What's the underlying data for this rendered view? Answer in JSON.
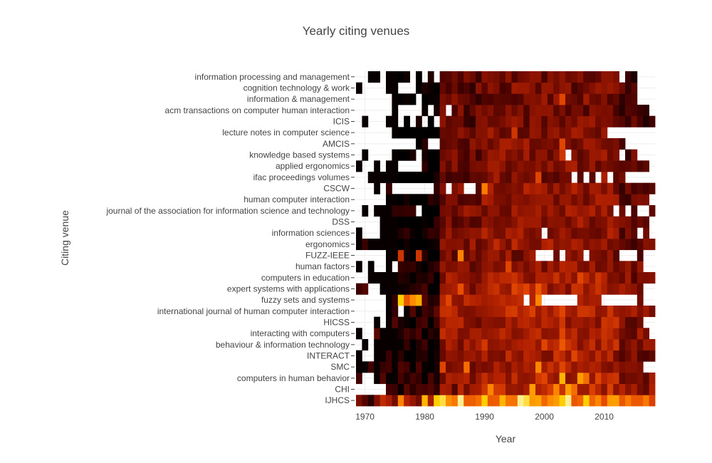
{
  "chart_data": {
    "type": "heatmap",
    "title": "Yearly citing venues",
    "xlabel": "Year",
    "ylabel": "Citing venue",
    "x_range": [
      1969,
      2018
    ],
    "x_ticks": [
      1970,
      1980,
      1990,
      2000,
      2010
    ],
    "grid": true,
    "colorscale": [
      "#000000",
      "#3c0000",
      "#7a0d00",
      "#b42200",
      "#e64a00",
      "#ff8a00",
      "#ffd200",
      "#fffbe0"
    ],
    "colorscale_note": "value 0-1, no colorbar shown; blank cells = no citations",
    "venues": [
      "IJHCS",
      "CHI",
      "computers in human behavior",
      "SMC",
      "INTERACT",
      "behaviour & information technology",
      "interacting with computers",
      "HICSS",
      "international journal of human computer interaction",
      "fuzzy sets and systems",
      "expert systems with applications",
      "computers in education",
      "human factors",
      "FUZZ-IEEE",
      "ergonomics",
      "information sciences",
      "DSS",
      "journal of the association for information science and technology",
      "human computer interaction",
      "CSCW",
      "ifac proceedings volumes",
      "applied ergonomics",
      "knowledge based systems",
      "AMCIS",
      "lecture notes in computer science",
      "ICIS",
      "acm transactions on computer human interaction",
      "information & management",
      "cognition technology & work",
      "information processing and management"
    ],
    "rows": {
      "IJHCS": {
        "start": 1969,
        "end": 2018,
        "base": 0.62,
        "blanks": [],
        "hot": [
          [
            1970,
            0.2
          ],
          [
            1971,
            0.1
          ],
          [
            1972,
            0.3
          ],
          [
            1976,
            0.7
          ],
          [
            1980,
            0.8
          ],
          [
            1982,
            0.85
          ],
          [
            1983,
            0.9
          ],
          [
            1986,
            0.95
          ],
          [
            1990,
            0.85
          ],
          [
            1993,
            0.8
          ],
          [
            1996,
            0.95
          ],
          [
            1997,
            0.9
          ],
          [
            2003,
            0.85
          ],
          [
            2004,
            0.95
          ],
          [
            2007,
            0.85
          ]
        ]
      },
      "CHI": {
        "start": 1969,
        "end": 2018,
        "base": 0.38,
        "blanks": [
          1969,
          1970,
          1971,
          1972,
          1973
        ],
        "hot": [
          [
            1985,
            0.2
          ],
          [
            1991,
            0.7
          ],
          [
            1998,
            0.75
          ],
          [
            2002,
            0.7
          ],
          [
            2004,
            0.75
          ],
          [
            2005,
            0.65
          ]
        ]
      },
      "computers in human behavior": {
        "start": 1969,
        "end": 2018,
        "base": 0.35,
        "blanks": [
          1970,
          1971
        ],
        "hot": [
          [
            2000,
            0.55
          ],
          [
            2003,
            0.8
          ],
          [
            2006,
            0.75
          ],
          [
            2007,
            0.65
          ],
          [
            2009,
            0.55
          ],
          [
            2012,
            0.5
          ]
        ]
      },
      "SMC": {
        "start": 1969,
        "end": 2016,
        "base": 0.33,
        "blanks": [],
        "hot": [
          [
            1983,
            0.55
          ],
          [
            1987,
            0.65
          ],
          [
            1999,
            0.7
          ],
          [
            2003,
            0.55
          ]
        ]
      },
      "INTERACT": {
        "start": 1969,
        "end": 2018,
        "base": 0.32,
        "blanks": [
          1970,
          1971
        ],
        "hot": [
          [
            2002,
            0.5
          ],
          [
            2005,
            0.55
          ]
        ]
      },
      "behaviour & information technology": {
        "start": 1970,
        "end": 2018,
        "base": 0.36,
        "blanks": [
          1971
        ],
        "hot": [
          [
            2000,
            0.55
          ],
          [
            2003,
            0.6
          ]
        ]
      },
      "interacting with computers": {
        "start": 1969,
        "end": 2017,
        "base": 0.36,
        "blanks": [
          1970,
          1971
        ],
        "hot": [
          [
            2003,
            0.55
          ]
        ]
      },
      "HICSS": {
        "start": 1972,
        "end": 2016,
        "base": 0.34,
        "blanks": [
          1973
        ],
        "hot": [
          [
            2003,
            0.5
          ]
        ]
      },
      "international journal of human computer interaction": {
        "start": 1974,
        "end": 2018,
        "base": 0.38,
        "blanks": [
          1976
        ],
        "hot": [
          [
            2003,
            0.55
          ]
        ]
      },
      "fuzzy sets and systems": {
        "start": 1974,
        "end": 2016,
        "base": 0.38,
        "blanks": [
          1997,
          2000,
          2001,
          2002,
          2003,
          2004,
          2005,
          2010,
          2011,
          2012,
          2013,
          2014,
          2015
        ],
        "hot": [
          [
            1976,
            0.85
          ],
          [
            1977,
            0.6
          ],
          [
            1978,
            0.72
          ],
          [
            1979,
            0.78
          ],
          [
            1984,
            0.55
          ],
          [
            1999,
            0.7
          ]
        ]
      },
      "expert systems with applications": {
        "start": 1969,
        "end": 2016,
        "base": 0.34,
        "blanks": [
          1971,
          1972
        ],
        "hot": [
          [
            1986,
            0.58
          ],
          [
            1995,
            0.55
          ],
          [
            1997,
            0.55
          ],
          [
            1999,
            0.6
          ]
        ]
      },
      "computers in education": {
        "start": 1971,
        "end": 2018,
        "base": 0.34,
        "blanks": [],
        "hot": [
          [
            2006,
            0.55
          ],
          [
            2009,
            0.5
          ]
        ]
      },
      "human factors": {
        "start": 1969,
        "end": 2016,
        "base": 0.3,
        "blanks": [
          1970,
          1972,
          1973,
          1975
        ],
        "hot": [
          [
            1994,
            0.55
          ]
        ]
      },
      "FUZZ-IEEE": {
        "start": 1974,
        "end": 2016,
        "base": 0.25,
        "blanks": [
          1999,
          2000,
          2001,
          2003,
          2007,
          2013,
          2014,
          2015
        ],
        "hot": [
          [
            1976,
            0.5
          ],
          [
            1979,
            0.5
          ],
          [
            1986,
            0.7
          ],
          [
            1999,
            0.92
          ]
        ]
      },
      "ergonomics": {
        "start": 1969,
        "end": 2018,
        "base": 0.3,
        "blanks": [],
        "hot": []
      },
      "information sciences": {
        "start": 1969,
        "end": 2017,
        "base": 0.28,
        "blanks": [
          1970,
          1971,
          1972,
          2000,
          2016
        ],
        "hot": []
      },
      "DSS": {
        "start": 1973,
        "end": 2017,
        "base": 0.28,
        "blanks": [],
        "hot": []
      },
      "journal of the association for information science and technology": {
        "start": 1970,
        "end": 2018,
        "base": 0.28,
        "blanks": [
          1971,
          1979,
          2012,
          2014,
          2016,
          2017
        ],
        "hot": []
      },
      "human computer interaction": {
        "start": 1974,
        "end": 2017,
        "base": 0.28,
        "blanks": [],
        "hot": []
      },
      "CSCW": {
        "start": 1972,
        "end": 2018,
        "base": 0.28,
        "blanks": [
          1973,
          1975,
          1976,
          1977,
          1978,
          1979,
          1980,
          1981,
          1984,
          1987,
          1988
        ],
        "hot": [
          [
            1990,
            0.68
          ]
        ]
      },
      "ifac proceedings volumes": {
        "start": 1971,
        "end": 2013,
        "base": 0.25,
        "blanks": [
          2005,
          2007,
          2009,
          2011
        ],
        "hot": [
          [
            1999,
            0.55
          ]
        ]
      },
      "applied ergonomics": {
        "start": 1969,
        "end": 2017,
        "base": 0.25,
        "blanks": [
          1970,
          1971,
          1973,
          1976,
          1977,
          1978,
          1979
        ],
        "hot": []
      },
      "knowledge based systems": {
        "start": 1970,
        "end": 2015,
        "base": 0.25,
        "blanks": [
          1971,
          1972,
          1973,
          1974,
          1979,
          2004,
          2013
        ],
        "hot": [
          [
            2003,
            0.5
          ]
        ]
      },
      "AMCIS": {
        "start": 1979,
        "end": 2013,
        "base": 0.25,
        "blanks": [
          1981,
          1982
        ],
        "hot": [
          [
            2003,
            0.55
          ]
        ]
      },
      "lecture notes in computer science": {
        "start": 1975,
        "end": 2010,
        "base": 0.25,
        "blanks": [],
        "hot": [
          [
            1995,
            0.5
          ]
        ]
      },
      "ICIS": {
        "start": 1970,
        "end": 2018,
        "base": 0.22,
        "blanks": [
          1971,
          1972,
          1973,
          1976,
          1978,
          1980,
          1982
        ],
        "hot": []
      },
      "acm transactions on computer human interaction": {
        "start": 1975,
        "end": 2017,
        "base": 0.22,
        "blanks": [
          1976,
          1977,
          1978,
          1979,
          1981,
          1984
        ],
        "hot": []
      },
      "information & management": {
        "start": 1975,
        "end": 2015,
        "base": 0.22,
        "blanks": [
          1979
        ],
        "hot": [
          [
            2003,
            0.55
          ]
        ]
      },
      "cognition technology & work": {
        "start": 1969,
        "end": 2015,
        "base": 0.22,
        "blanks": [
          1970,
          1971,
          1972,
          1973,
          1976,
          1977,
          1978
        ],
        "hot": []
      },
      "information processing and management": {
        "start": 1971,
        "end": 2015,
        "base": 0.22,
        "blanks": [
          1973,
          1978,
          1980,
          1982,
          2013
        ],
        "hot": []
      }
    }
  }
}
